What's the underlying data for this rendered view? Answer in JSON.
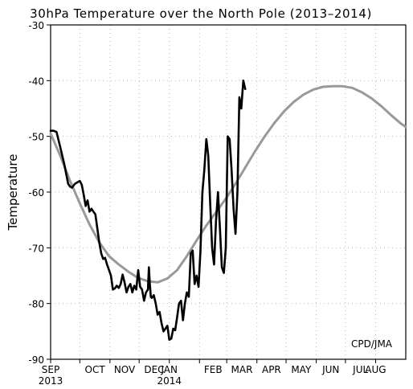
{
  "chart_data": {
    "type": "line",
    "title": "30hPa Temperature over the North Pole (2013–2014)",
    "xlabel": "",
    "ylabel": "Temperature",
    "credit": "CPD/JMA",
    "ylim": [
      -90,
      -30
    ],
    "yticks": [
      -90,
      -80,
      -70,
      -60,
      -50,
      -40,
      -30
    ],
    "xlim": [
      0,
      365
    ],
    "xticks": [
      {
        "day": 0,
        "label": "SEP",
        "sublabel": "2013"
      },
      {
        "day": 30,
        "label": "OCT",
        "sublabel": ""
      },
      {
        "day": 61,
        "label": "NOV",
        "sublabel": ""
      },
      {
        "day": 91,
        "label": "DEC",
        "sublabel": ""
      },
      {
        "day": 122,
        "label": "JAN",
        "sublabel": "2014"
      },
      {
        "day": 153,
        "label": "FEB",
        "sublabel": ""
      },
      {
        "day": 181,
        "label": "MAR",
        "sublabel": ""
      },
      {
        "day": 212,
        "label": "APR",
        "sublabel": ""
      },
      {
        "day": 242,
        "label": "MAY",
        "sublabel": ""
      },
      {
        "day": 273,
        "label": "JUN",
        "sublabel": ""
      },
      {
        "day": 303,
        "label": "JUL",
        "sublabel": ""
      },
      {
        "day": 334,
        "label": "AUG",
        "sublabel": ""
      }
    ],
    "grid": true,
    "series": [
      {
        "color": "#999999",
        "x": [
          0,
          10,
          20,
          30,
          40,
          50,
          60,
          70,
          80,
          90,
          100,
          110,
          120,
          130,
          140,
          150,
          160,
          170,
          180,
          190,
          200,
          210,
          220,
          230,
          240,
          250,
          260,
          270,
          280,
          290,
          300,
          310,
          320,
          330,
          340,
          350,
          360,
          365
        ],
        "values": [
          -49.5,
          -53.5,
          -58.0,
          -62.0,
          -65.8,
          -69.0,
          -71.5,
          -73.0,
          -74.3,
          -75.4,
          -76.0,
          -76.2,
          -75.5,
          -74.0,
          -71.5,
          -68.7,
          -66.0,
          -63.6,
          -61.2,
          -58.5,
          -55.6,
          -52.7,
          -50.0,
          -47.6,
          -45.5,
          -43.8,
          -42.5,
          -41.6,
          -41.1,
          -41.0,
          -41.0,
          -41.3,
          -42.1,
          -43.2,
          -44.6,
          -46.2,
          -47.7,
          -48.3
        ]
      },
      {
        "color": "#000000",
        "x": [
          0,
          3,
          6,
          10,
          14,
          18,
          20,
          22,
          25,
          30,
          32,
          34,
          36,
          38,
          40,
          42,
          44,
          46,
          48,
          50,
          52,
          54,
          56,
          58,
          60,
          62,
          64,
          66,
          68,
          70,
          72,
          74,
          76,
          78,
          80,
          82,
          84,
          86,
          88,
          90,
          92,
          94,
          96,
          98,
          100,
          101,
          102,
          103,
          104,
          106,
          108,
          110,
          112,
          114,
          116,
          118,
          120,
          122,
          124,
          126,
          128,
          130,
          132,
          134,
          136,
          138,
          140,
          142,
          144,
          146,
          148,
          150,
          152,
          154,
          156,
          158,
          160,
          162,
          164,
          166,
          168,
          170,
          172,
          174,
          176,
          178,
          180,
          182,
          184,
          186,
          188,
          190,
          192,
          194,
          196,
          198,
          200
        ],
        "values": [
          -49.0,
          -49.0,
          -49.2,
          -52.0,
          -55.0,
          -58.5,
          -59.0,
          -59.2,
          -58.5,
          -58.0,
          -58.7,
          -60.5,
          -62.5,
          -61.5,
          -63.5,
          -63.0,
          -63.5,
          -64.0,
          -66.5,
          -69.0,
          -71.0,
          -72.0,
          -71.8,
          -73.0,
          -74.0,
          -75.0,
          -77.5,
          -77.3,
          -76.8,
          -77.2,
          -76.5,
          -74.8,
          -76.2,
          -78.0,
          -77.0,
          -76.5,
          -78.0,
          -76.8,
          -77.5,
          -74.0,
          -77.0,
          -77.5,
          -79.5,
          -78.0,
          -77.5,
          -73.5,
          -76.5,
          -78.8,
          -79.0,
          -78.5,
          -80.0,
          -82.0,
          -81.5,
          -83.5,
          -85.0,
          -84.5,
          -84.0,
          -86.5,
          -86.3,
          -84.5,
          -84.8,
          -82.5,
          -80.0,
          -79.5,
          -83.0,
          -80.0,
          -78.0,
          -78.8,
          -71.0,
          -70.5,
          -76.5,
          -75.0,
          -77.0,
          -70.5,
          -60.0,
          -56.0,
          -50.5,
          -53.5,
          -62.0,
          -70.0,
          -73.0,
          -65.0,
          -60.0,
          -66.5,
          -73.5,
          -74.5,
          -70.0,
          -50.0,
          -50.5,
          -56.0,
          -63.0,
          -67.5,
          -60.0,
          -43.0,
          -45.0,
          -40.0,
          -41.5
        ]
      }
    ]
  }
}
